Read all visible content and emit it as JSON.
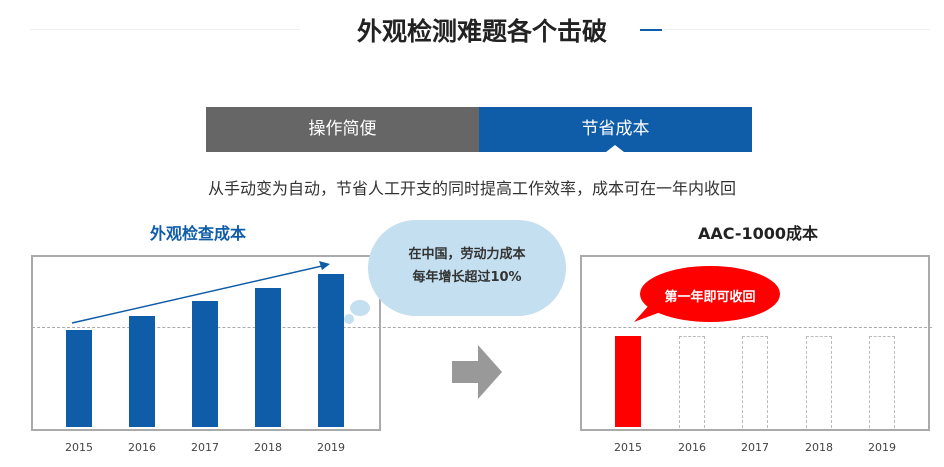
{
  "header": {
    "title": "外观检测难题各个击破"
  },
  "tabs": [
    {
      "label": "操作简便",
      "active": false
    },
    {
      "label": "节省成本",
      "active": true
    }
  ],
  "subtitle": "从手动变为自动，节省人工开支的同时提高工作效率，成本可在一年内收回",
  "cloud_callout": {
    "line1": "在中国，劳动力成本",
    "line2": "每年增长超过10%"
  },
  "bubble_callout": "第一年即可收回",
  "colors": {
    "accent": "#0f5ca8",
    "tab_inactive": "#666666",
    "highlight": "#ff0000",
    "arrow": "#999999",
    "cloud": "#c4dff0"
  },
  "chart_data": [
    {
      "type": "bar",
      "title": "外观检查成本",
      "categories": [
        "2015",
        "2016",
        "2017",
        "2018",
        "2019"
      ],
      "values": [
        100,
        114,
        130,
        143,
        158
      ],
      "color": "#0f5ca8",
      "trend_arrow": true,
      "grid": false
    },
    {
      "type": "bar",
      "title": "AAC-1000成本",
      "categories": [
        "2015",
        "2016",
        "2017",
        "2018",
        "2019"
      ],
      "values": [
        94,
        0,
        0,
        0,
        0
      ],
      "placeholder_values": [
        94,
        94,
        94,
        94,
        94
      ],
      "color": "#ff0000",
      "grid": false
    }
  ]
}
